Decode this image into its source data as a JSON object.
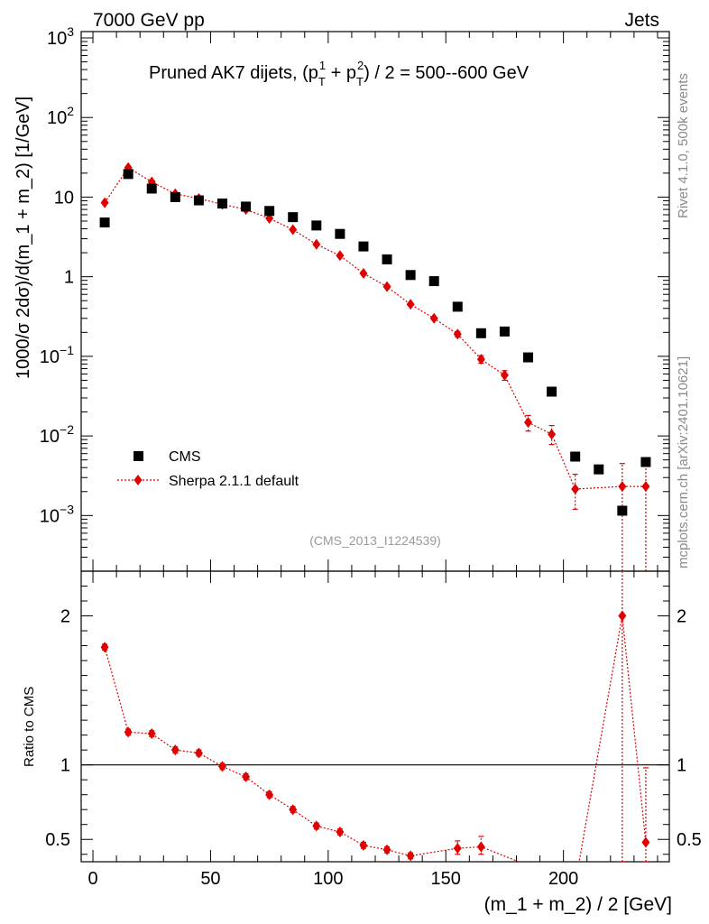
{
  "header": {
    "left": "7000 GeV pp",
    "right": "Jets"
  },
  "side": {
    "rivet": "Rivet 4.1.0,  500k events",
    "mcplots": "mcplots.cern.ch [arXiv:2401.10621]"
  },
  "colors": {
    "cms": "#000000",
    "mc": "#e00000"
  },
  "chart_data": [
    {
      "type": "scatter",
      "panel": "main",
      "title_main": "Pruned AK7 dijets, (p",
      "title_tail": ") / 2 = 500--600 GeV",
      "title_t": "T",
      "title_sup1": "1",
      "title_sup2": "2",
      "title_plus": " + p",
      "ylabel": "1000/σ   2dσ)/d(m_1 + m_2) [1/GeV]",
      "yscale": "log",
      "ylim": [
        0.0002,
        1200
      ],
      "xlim": [
        -5,
        245
      ],
      "yticks": [
        {
          "v": 1000,
          "base": "10",
          "exp": "3"
        },
        {
          "v": 100,
          "base": "10",
          "exp": "2"
        },
        {
          "v": 10,
          "base": "10",
          "exp": ""
        },
        {
          "v": 1,
          "base": "1",
          "exp": ""
        },
        {
          "v": 0.1,
          "base": "10",
          "exp": "−1"
        },
        {
          "v": 0.01,
          "base": "10",
          "exp": "−2"
        },
        {
          "v": 0.001,
          "base": "10",
          "exp": "−3"
        }
      ],
      "legend": [
        {
          "label": "CMS",
          "marker": "square"
        },
        {
          "label": "Sherpa 2.1.1 default",
          "marker": "diamond"
        }
      ],
      "watermark": "(CMS_2013_I1224539)",
      "series": [
        {
          "name": "CMS",
          "x": [
            5,
            15,
            25,
            35,
            45,
            55,
            65,
            75,
            85,
            95,
            105,
            115,
            125,
            135,
            145,
            155,
            165,
            175,
            185,
            195,
            205,
            215,
            225,
            235
          ],
          "y": [
            4.8,
            19.5,
            12.8,
            10.0,
            9.1,
            8.3,
            7.6,
            6.7,
            5.6,
            4.4,
            3.45,
            2.4,
            1.65,
            1.05,
            0.88,
            0.42,
            0.195,
            0.205,
            0.097,
            0.036,
            0.0055,
            0.0038,
            0.00115,
            0.0047
          ]
        },
        {
          "name": "Sherpa 2.1.1 default",
          "x": [
            5,
            15,
            25,
            35,
            45,
            55,
            65,
            75,
            85,
            95,
            105,
            115,
            125,
            135,
            145,
            155,
            165,
            175,
            185,
            195,
            205,
            225,
            235
          ],
          "y": [
            8.5,
            23.5,
            15.5,
            11.0,
            9.6,
            8.1,
            7.0,
            5.4,
            3.9,
            2.55,
            1.84,
            1.1,
            0.75,
            0.45,
            0.3,
            0.19,
            0.092,
            0.058,
            0.0148,
            0.0105,
            0.00215,
            0.00232,
            0.00232
          ],
          "ylo": [
            8.4,
            23.3,
            15.3,
            10.9,
            9.5,
            8.0,
            6.9,
            5.3,
            3.85,
            2.5,
            1.8,
            1.07,
            0.73,
            0.43,
            0.285,
            0.175,
            0.082,
            0.05,
            0.0115,
            0.0078,
            0.0012,
            0.0001,
            0.0001
          ],
          "yhi": [
            8.6,
            23.7,
            15.7,
            11.1,
            9.7,
            8.2,
            7.1,
            5.5,
            3.95,
            2.6,
            1.88,
            1.13,
            0.77,
            0.47,
            0.315,
            0.205,
            0.102,
            0.066,
            0.0181,
            0.0135,
            0.0033,
            0.0045,
            0.0045
          ]
        }
      ]
    },
    {
      "type": "line",
      "panel": "ratio",
      "ylabel": "Ratio to CMS",
      "xlabel": "(m_1 + m_2) / 2 [GeV]",
      "ylim": [
        0.35,
        2.3
      ],
      "xlim": [
        -5,
        245
      ],
      "yticks": [
        {
          "v": 0.5,
          "label": "0.5"
        },
        {
          "v": 1,
          "label": "1"
        },
        {
          "v": 2,
          "label": "2"
        }
      ],
      "xticks": [
        {
          "v": 0,
          "label": "0"
        },
        {
          "v": 50,
          "label": "50"
        },
        {
          "v": 100,
          "label": "100"
        },
        {
          "v": 150,
          "label": "150"
        },
        {
          "v": 200,
          "label": "200"
        }
      ],
      "reference": 1,
      "series": [
        {
          "name": "Sherpa 2.1.1 default / CMS",
          "x": [
            5,
            15,
            25,
            35,
            45,
            55,
            65,
            75,
            85,
            95,
            105,
            115,
            125,
            135,
            155,
            165,
            225,
            235
          ],
          "y": [
            1.79,
            1.22,
            1.21,
            1.1,
            1.08,
            0.99,
            0.92,
            0.8,
            0.7,
            0.59,
            0.55,
            0.46,
            0.43,
            0.39,
            0.44,
            0.45,
            2.0,
            0.48
          ],
          "ylo": [
            1.77,
            1.2,
            1.19,
            1.08,
            1.06,
            0.97,
            0.9,
            0.78,
            0.68,
            0.57,
            0.53,
            0.44,
            0.41,
            0.37,
            0.4,
            0.4,
            0.35,
            0.35
          ],
          "yhi": [
            1.81,
            1.24,
            1.23,
            1.12,
            1.1,
            1.01,
            0.94,
            0.82,
            0.72,
            0.61,
            0.57,
            0.48,
            0.45,
            0.41,
            0.49,
            0.52,
            2.3,
            0.98
          ]
        }
      ]
    }
  ]
}
